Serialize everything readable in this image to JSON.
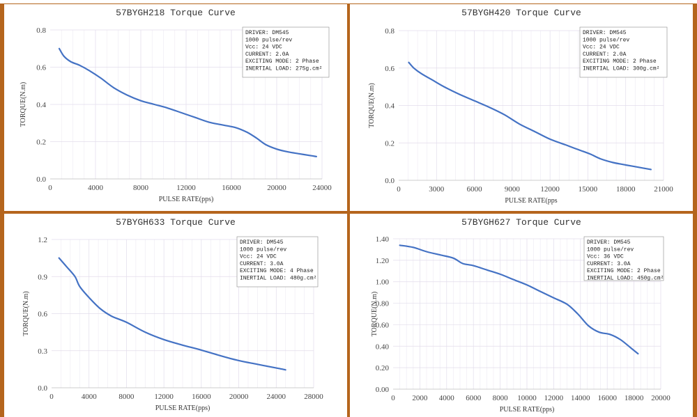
{
  "chart_data": [
    {
      "type": "line",
      "title": "57BYGH218 Torque Curve",
      "xlabel": "PULSE RATE(pps)",
      "ylabel": "TORQUE(N.m)",
      "xlim": [
        0,
        24000
      ],
      "ylim": [
        0,
        0.8
      ],
      "xticks": [
        0,
        4000,
        8000,
        12000,
        16000,
        20000,
        24000
      ],
      "yticks": [
        0.0,
        0.2,
        0.4,
        0.6,
        0.8
      ],
      "xtick_labels": [
        "0",
        "4000",
        "8000",
        "12000",
        "16000",
        "20000",
        "24000"
      ],
      "ytick_labels": [
        "0.0",
        "0.2",
        "0.4",
        "0.6",
        "0.8"
      ],
      "grid": true,
      "info": [
        "DRIVER: DM545",
        "1000  pulse/rev",
        "Vcc: 24 VDC",
        "CURRENT: 2.0A",
        "EXCITING MODE: 2 Phase",
        "INERTIAL LOAD: 275g.cm²"
      ],
      "series": [
        {
          "x": [
            800,
            1200,
            1800,
            2600,
            3500,
            4500,
            5600,
            6800,
            8000,
            9200,
            10400,
            11600,
            12800,
            14000,
            15200,
            16400,
            17400,
            18200,
            19000,
            20000,
            21000,
            22000,
            23000,
            23500
          ],
          "y": [
            0.7,
            0.66,
            0.63,
            0.61,
            0.58,
            0.54,
            0.49,
            0.45,
            0.42,
            0.4,
            0.38,
            0.355,
            0.33,
            0.305,
            0.29,
            0.275,
            0.25,
            0.22,
            0.185,
            0.16,
            0.145,
            0.135,
            0.125,
            0.12
          ]
        }
      ]
    },
    {
      "type": "line",
      "title": "57BYGH420 Torque Curve",
      "xlabel": "PULSE RATE(pps",
      "ylabel": "TORQUE(N.m)",
      "xlim": [
        0,
        21000
      ],
      "ylim": [
        0,
        0.8
      ],
      "xticks": [
        0,
        3000,
        6000,
        9000,
        12000,
        15000,
        18000,
        21000
      ],
      "yticks": [
        0.0,
        0.2,
        0.4,
        0.6,
        0.8
      ],
      "xtick_labels": [
        "0",
        "3000",
        "6000",
        "9000",
        "12000",
        "15000",
        "18000",
        "21000"
      ],
      "ytick_labels": [
        "0.0",
        "0.2",
        "0.4",
        "0.6",
        "0.8"
      ],
      "grid": true,
      "info": [
        "DRIVER: DM545",
        "1000 pulse/rev",
        "Vcc: 24 VDC",
        "CURRENT: 2.0A",
        "EXCITING MODE: 2 Phase",
        "INERTIAL LOAD: 300g.cm²"
      ],
      "series": [
        {
          "x": [
            800,
            1200,
            1800,
            2700,
            3600,
            4800,
            6000,
            7200,
            8400,
            9600,
            10800,
            12000,
            13200,
            14400,
            15200,
            16000,
            17000,
            18000,
            19000,
            20000
          ],
          "y": [
            0.63,
            0.6,
            0.57,
            0.535,
            0.5,
            0.46,
            0.425,
            0.39,
            0.35,
            0.3,
            0.26,
            0.22,
            0.19,
            0.16,
            0.14,
            0.115,
            0.095,
            0.082,
            0.07,
            0.058
          ]
        }
      ]
    },
    {
      "type": "line",
      "title": "57BYGH633 Torque Curve",
      "xlabel": "PULSE RATE(pps)",
      "ylabel": "TORQUE(N.m)",
      "xlim": [
        0,
        28000
      ],
      "ylim": [
        0,
        1.2
      ],
      "xticks": [
        0,
        4000,
        8000,
        12000,
        16000,
        20000,
        24000,
        28000
      ],
      "yticks": [
        0.0,
        0.3,
        0.6,
        0.9,
        1.2
      ],
      "xtick_labels": [
        "0",
        "4000",
        "8000",
        "12000",
        "16000",
        "20000",
        "24000",
        "28000"
      ],
      "ytick_labels": [
        "0.0",
        "0.3",
        "0.6",
        "0.9",
        "1.2"
      ],
      "grid": true,
      "info": [
        "DRIVER: DM545",
        "1000 pulse/rev",
        "Vcc: 24 VDC",
        "CURRENT: 3.0A",
        "EXCITING MODE: 4 Phase",
        "INERTIAL LOAD: 480g.cm²"
      ],
      "series": [
        {
          "x": [
            800,
            1600,
            2500,
            3000,
            4000,
            5200,
            6400,
            8000,
            10000,
            12000,
            14000,
            16000,
            18000,
            20000,
            22000,
            24000,
            25000
          ],
          "y": [
            1.05,
            0.98,
            0.9,
            0.82,
            0.73,
            0.64,
            0.58,
            0.53,
            0.45,
            0.39,
            0.345,
            0.305,
            0.26,
            0.22,
            0.19,
            0.16,
            0.145
          ]
        }
      ]
    },
    {
      "type": "line",
      "title": "57BYGH627 Torque Curve",
      "xlabel": "PULSE  RATE(pps)",
      "ylabel": "TORQUE(N.m)",
      "xlim": [
        0,
        20000
      ],
      "ylim": [
        0,
        1.4
      ],
      "xticks": [
        0,
        2000,
        4000,
        6000,
        8000,
        10000,
        12000,
        14000,
        16000,
        18000,
        20000
      ],
      "yticks": [
        0.0,
        0.2,
        0.4,
        0.6,
        0.8,
        1.0,
        1.2,
        1.4
      ],
      "xtick_labels": [
        "0",
        "2000",
        "4000",
        "6000",
        "8000",
        "10000",
        "12000",
        "14000",
        "16000",
        "18000",
        "20000"
      ],
      "ytick_labels": [
        "0.00",
        "0.20",
        "0.40",
        "0.60",
        "0.80",
        "1.00",
        "1.20",
        "1.40"
      ],
      "grid": true,
      "info": [
        "DRIVER: DM545",
        "1000  pulse/rev",
        "Vcc: 36 VDC",
        "CURRENT: 3.0A",
        "EXCITING MODE: 2 Phase",
        "INERTIAL LOAD: 450g.cm²"
      ],
      "series": [
        {
          "x": [
            500,
            1500,
            2500,
            3500,
            4500,
            5200,
            6000,
            7000,
            8000,
            9000,
            10000,
            11000,
            12000,
            13000,
            13800,
            14600,
            15400,
            16200,
            17000,
            17800,
            18300
          ],
          "y": [
            1.34,
            1.32,
            1.28,
            1.25,
            1.22,
            1.17,
            1.15,
            1.11,
            1.07,
            1.02,
            0.97,
            0.91,
            0.85,
            0.79,
            0.7,
            0.59,
            0.53,
            0.51,
            0.46,
            0.38,
            0.33
          ]
        }
      ]
    }
  ]
}
